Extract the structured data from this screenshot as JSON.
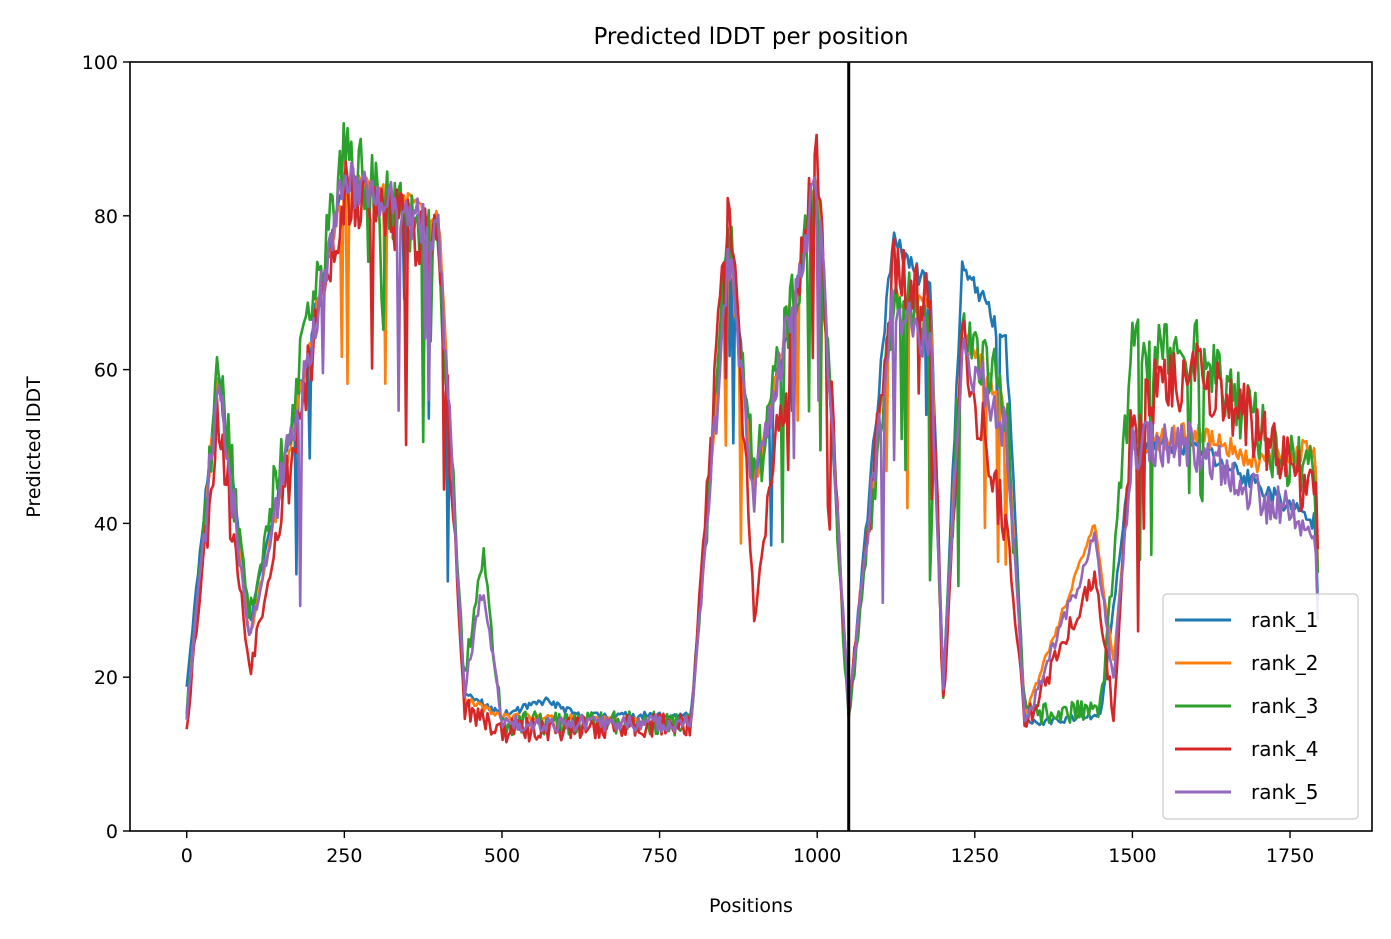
{
  "chart_data": {
    "type": "line",
    "title": "Predicted lDDT per position",
    "xlabel": "Positions",
    "ylabel": "Predicted lDDT",
    "xlim": [
      -90,
      1880
    ],
    "ylim": [
      0,
      100
    ],
    "xticks": [
      0,
      250,
      500,
      750,
      1000,
      1250,
      1500,
      1750
    ],
    "yticks": [
      0,
      20,
      40,
      60,
      80,
      100
    ],
    "vline_x": 1050,
    "grid": false,
    "legend_position": "lower-right",
    "series": [
      {
        "name": "rank_1",
        "color": "#1f77b4",
        "style": "base",
        "noise": 1.4,
        "seed": 11,
        "values": [
          [
            0,
            19
          ],
          [
            50,
            60
          ],
          [
            100,
            27
          ],
          [
            250,
            85
          ],
          [
            400,
            78
          ],
          [
            440,
            18
          ],
          [
            500,
            15
          ],
          [
            570,
            17
          ],
          [
            620,
            15
          ],
          [
            800,
            15
          ],
          [
            860,
            78
          ],
          [
            900,
            45
          ],
          [
            1000,
            83
          ],
          [
            1050,
            15
          ],
          [
            1120,
            77
          ],
          [
            1180,
            70
          ],
          [
            1200,
            18
          ],
          [
            1230,
            74
          ],
          [
            1300,
            63
          ],
          [
            1330,
            14
          ],
          [
            1450,
            15
          ],
          [
            1500,
            50
          ],
          [
            1600,
            50
          ],
          [
            1700,
            45
          ],
          [
            1790,
            40
          ],
          [
            1795,
            28
          ]
        ]
      },
      {
        "name": "rank_2",
        "color": "#ff7f0e",
        "style": "base",
        "noise": 1.4,
        "seed": 23,
        "values": [
          [
            0,
            15
          ],
          [
            50,
            60
          ],
          [
            100,
            25
          ],
          [
            250,
            85
          ],
          [
            400,
            80
          ],
          [
            440,
            17
          ],
          [
            500,
            15
          ],
          [
            800,
            14
          ],
          [
            860,
            76
          ],
          [
            900,
            45
          ],
          [
            1000,
            85
          ],
          [
            1050,
            16
          ],
          [
            1120,
            70
          ],
          [
            1180,
            68
          ],
          [
            1200,
            17
          ],
          [
            1230,
            65
          ],
          [
            1300,
            55
          ],
          [
            1330,
            15
          ],
          [
            1440,
            40
          ],
          [
            1470,
            22
          ],
          [
            1500,
            50
          ],
          [
            1600,
            52
          ],
          [
            1700,
            48
          ],
          [
            1790,
            50
          ],
          [
            1795,
            30
          ]
        ]
      },
      {
        "name": "rank_3",
        "color": "#2ca02c",
        "style": "noisy",
        "noise": 4.5,
        "seed": 37,
        "values": [
          [
            0,
            16
          ],
          [
            50,
            60
          ],
          [
            100,
            28
          ],
          [
            250,
            88
          ],
          [
            400,
            75
          ],
          [
            420,
            48
          ],
          [
            440,
            20
          ],
          [
            470,
            36
          ],
          [
            500,
            14
          ],
          [
            800,
            14
          ],
          [
            860,
            78
          ],
          [
            900,
            45
          ],
          [
            1000,
            84
          ],
          [
            1050,
            14
          ],
          [
            1120,
            70
          ],
          [
            1180,
            66
          ],
          [
            1200,
            18
          ],
          [
            1230,
            67
          ],
          [
            1300,
            55
          ],
          [
            1330,
            15
          ],
          [
            1450,
            16
          ],
          [
            1500,
            62
          ],
          [
            1600,
            63
          ],
          [
            1700,
            52
          ],
          [
            1790,
            45
          ],
          [
            1795,
            30
          ]
        ]
      },
      {
        "name": "rank_4",
        "color": "#d62728",
        "style": "noisy",
        "noise": 4.5,
        "seed": 53,
        "values": [
          [
            0,
            14
          ],
          [
            50,
            55
          ],
          [
            100,
            21
          ],
          [
            250,
            83
          ],
          [
            400,
            76
          ],
          [
            440,
            16
          ],
          [
            500,
            13
          ],
          [
            800,
            14
          ],
          [
            860,
            85
          ],
          [
            900,
            28
          ],
          [
            1000,
            89
          ],
          [
            1050,
            15
          ],
          [
            1120,
            73
          ],
          [
            1180,
            70
          ],
          [
            1200,
            16
          ],
          [
            1230,
            63
          ],
          [
            1300,
            40
          ],
          [
            1330,
            14
          ],
          [
            1440,
            33
          ],
          [
            1470,
            15
          ],
          [
            1500,
            56
          ],
          [
            1600,
            60
          ],
          [
            1700,
            52
          ],
          [
            1790,
            44
          ],
          [
            1795,
            33
          ]
        ]
      },
      {
        "name": "rank_5",
        "color": "#9467bd",
        "style": "noisy",
        "noise": 3.2,
        "seed": 71,
        "values": [
          [
            0,
            15
          ],
          [
            50,
            58
          ],
          [
            100,
            25
          ],
          [
            250,
            85
          ],
          [
            400,
            78
          ],
          [
            440,
            18
          ],
          [
            470,
            32
          ],
          [
            500,
            14
          ],
          [
            800,
            14
          ],
          [
            860,
            75
          ],
          [
            900,
            44
          ],
          [
            1000,
            85
          ],
          [
            1050,
            16
          ],
          [
            1120,
            68
          ],
          [
            1180,
            64
          ],
          [
            1200,
            19
          ],
          [
            1230,
            63
          ],
          [
            1300,
            52
          ],
          [
            1330,
            14
          ],
          [
            1440,
            38
          ],
          [
            1470,
            20
          ],
          [
            1500,
            50
          ],
          [
            1600,
            50
          ],
          [
            1700,
            44
          ],
          [
            1790,
            38
          ],
          [
            1795,
            26
          ]
        ]
      }
    ]
  }
}
